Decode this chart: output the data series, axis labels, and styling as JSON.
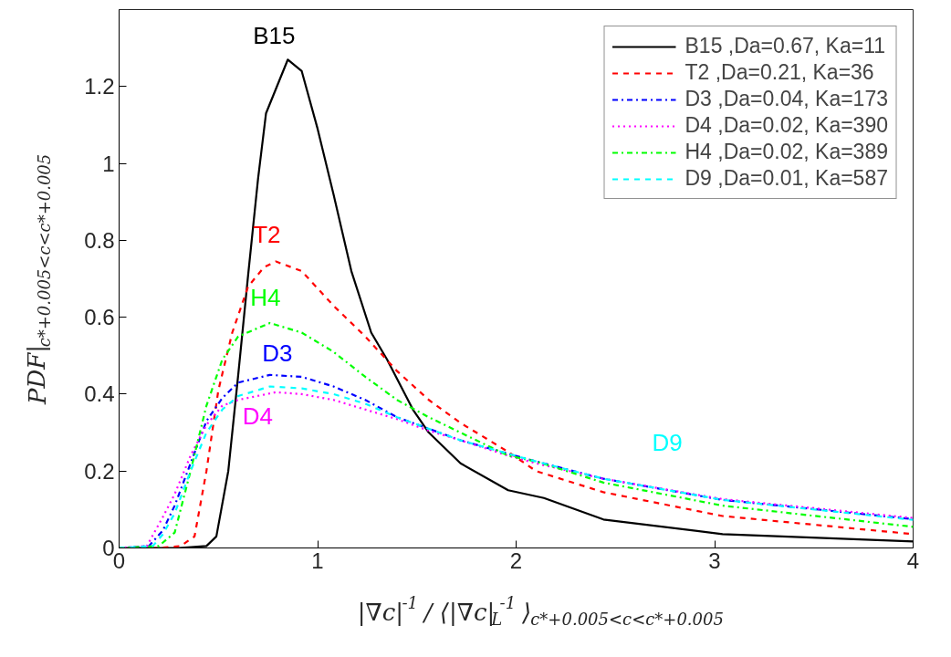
{
  "chart_data": {
    "type": "line",
    "xlabel": "|∇c|$^{-1}$/ ⟨|∇c|$_{L}$$^{-1}$⟩$_{c*+0.005<c<c*+0.005}$",
    "ylabel": "PDF|$_{c*+0.005<c<c*+0.005}$",
    "xlim": [
      0,
      4
    ],
    "xticks": [
      0,
      1,
      2,
      3,
      4
    ],
    "ylim": [
      0,
      1.4
    ],
    "yticks": [
      0,
      0.2,
      0.4,
      0.6,
      0.8,
      1,
      1.2
    ],
    "grid": false,
    "legend": "top right",
    "series": [
      {
        "name": "B15 ,Da=0.67, Ka=11",
        "color": "#000000",
        "line_style": "solid",
        "x": [
          0,
          0.3,
          0.44,
          0.49,
          0.55,
          0.6,
          0.65,
          0.7,
          0.74,
          0.85,
          0.92,
          1.0,
          1.08,
          1.17,
          1.27,
          1.35,
          1.48,
          1.56,
          1.72,
          1.96,
          2.14,
          2.44,
          3.04,
          4.0
        ],
        "values": [
          0,
          0,
          0.005,
          0.03,
          0.2,
          0.45,
          0.71,
          0.96,
          1.13,
          1.27,
          1.24,
          1.09,
          0.92,
          0.72,
          0.56,
          0.49,
          0.36,
          0.3,
          0.22,
          0.15,
          0.13,
          0.074,
          0.036,
          0.017
        ]
      },
      {
        "name": "T2 ,Da=0.21, Ka=36",
        "color": "#ff0000",
        "line_style": "dashed",
        "x": [
          0,
          0.2,
          0.31,
          0.38,
          0.44,
          0.5,
          0.57,
          0.65,
          0.73,
          0.79,
          0.92,
          1.08,
          1.24,
          1.4,
          1.56,
          1.72,
          1.96,
          2.1,
          2.44,
          3.04,
          4.0
        ],
        "values": [
          0,
          0,
          0.005,
          0.03,
          0.2,
          0.41,
          0.56,
          0.68,
          0.73,
          0.745,
          0.72,
          0.63,
          0.55,
          0.46,
          0.385,
          0.325,
          0.25,
          0.2,
          0.145,
          0.083,
          0.036
        ]
      },
      {
        "name": "D3 ,Da=0.04, Ka=173",
        "color": "#0000ff",
        "line_style": "dashdot",
        "x": [
          0,
          0.15,
          0.22,
          0.28,
          0.36,
          0.44,
          0.52,
          0.6,
          0.76,
          0.92,
          1.08,
          1.24,
          1.4,
          1.56,
          1.72,
          1.96,
          2.1,
          2.44,
          3.04,
          4.0
        ],
        "values": [
          0,
          0.005,
          0.045,
          0.11,
          0.22,
          0.33,
          0.39,
          0.43,
          0.45,
          0.445,
          0.42,
          0.385,
          0.34,
          0.31,
          0.28,
          0.245,
          0.225,
          0.18,
          0.125,
          0.075
        ]
      },
      {
        "name": "D4 ,Da=0.02, Ka=390",
        "color": "#ff00ff",
        "line_style": "dotted",
        "x": [
          0,
          0.14,
          0.22,
          0.28,
          0.36,
          0.44,
          0.52,
          0.6,
          0.79,
          0.92,
          1.08,
          1.24,
          1.4,
          1.56,
          1.72,
          1.96,
          2.1,
          2.44,
          3.04,
          4.0
        ],
        "values": [
          0,
          0.005,
          0.08,
          0.14,
          0.24,
          0.32,
          0.37,
          0.385,
          0.405,
          0.4,
          0.385,
          0.36,
          0.335,
          0.305,
          0.28,
          0.24,
          0.22,
          0.18,
          0.127,
          0.078
        ]
      },
      {
        "name": "H4 ,Da=0.02, Ka=389",
        "color": "#00ff00",
        "line_style": "dashdot",
        "x": [
          0,
          0.2,
          0.28,
          0.36,
          0.44,
          0.52,
          0.6,
          0.76,
          0.92,
          1.08,
          1.24,
          1.4,
          1.56,
          1.72,
          1.96,
          2.1,
          2.44,
          3.04,
          4.0
        ],
        "values": [
          0,
          0.005,
          0.04,
          0.2,
          0.37,
          0.49,
          0.55,
          0.585,
          0.56,
          0.51,
          0.445,
          0.385,
          0.34,
          0.3,
          0.24,
          0.225,
          0.17,
          0.11,
          0.055
        ]
      },
      {
        "name": "D9 ,Da=0.01, Ka=587",
        "color": "#00ffff",
        "line_style": "dashed",
        "x": [
          0,
          0.17,
          0.22,
          0.28,
          0.36,
          0.44,
          0.52,
          0.6,
          0.76,
          0.92,
          1.08,
          1.24,
          1.4,
          1.56,
          1.72,
          1.96,
          2.1,
          2.44,
          3.04,
          4.0
        ],
        "values": [
          0,
          0.005,
          0.035,
          0.09,
          0.2,
          0.3,
          0.36,
          0.395,
          0.42,
          0.415,
          0.4,
          0.375,
          0.34,
          0.31,
          0.28,
          0.245,
          0.225,
          0.18,
          0.125,
          0.073
        ]
      }
    ],
    "annotations": [
      {
        "text": "B15",
        "x": 0.85,
        "y": 1.27
      },
      {
        "text": "T2",
        "x": 0.79,
        "y": 0.745
      },
      {
        "text": "H4",
        "x": 0.76,
        "y": 0.585
      },
      {
        "text": "D3",
        "x": 0.76,
        "y": 0.45
      },
      {
        "text": "D4",
        "x": 0.79,
        "y": 0.405
      },
      {
        "text": "D9",
        "x": 2.44,
        "y": 0.18
      }
    ]
  }
}
